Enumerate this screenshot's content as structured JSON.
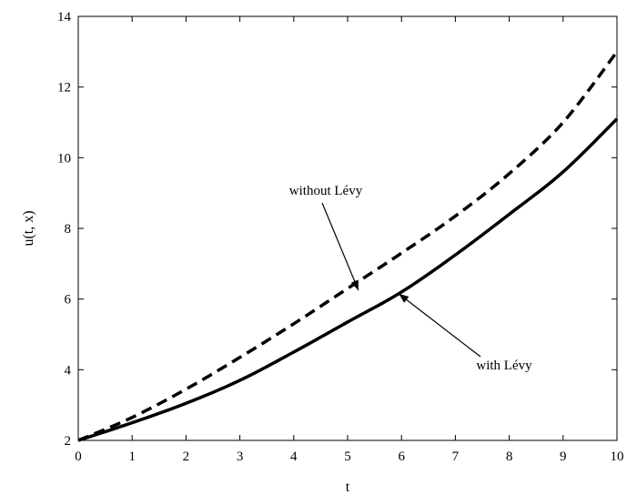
{
  "chart_data": {
    "type": "line",
    "title": "",
    "xlabel": "t",
    "ylabel": "u(t, x)",
    "xlim": [
      0,
      10
    ],
    "ylim": [
      2,
      14
    ],
    "xticks": [
      0,
      1,
      2,
      3,
      4,
      5,
      6,
      7,
      8,
      9,
      10
    ],
    "yticks": [
      2,
      4,
      6,
      8,
      10,
      12,
      14
    ],
    "grid": false,
    "legend": "none",
    "x": [
      0,
      1,
      2,
      3,
      4,
      5,
      6,
      7,
      8,
      9,
      10
    ],
    "series": [
      {
        "name": "without Lévy",
        "style": "dashed",
        "color": "#000000",
        "values": [
          2.0,
          2.65,
          3.45,
          4.35,
          5.3,
          6.3,
          7.3,
          8.35,
          9.55,
          11.0,
          13.0
        ]
      },
      {
        "name": "with Lévy",
        "style": "solid",
        "color": "#000000",
        "values": [
          2.0,
          2.5,
          3.05,
          3.7,
          4.5,
          5.35,
          6.2,
          7.25,
          8.4,
          9.6,
          11.1
        ]
      }
    ],
    "annotations": [
      {
        "text": "without Lévy",
        "series": 0,
        "point": [
          5.2,
          6.25
        ],
        "text_pos": "upper-left"
      },
      {
        "text": "with Lévy",
        "series": 1,
        "point": [
          5.95,
          6.15
        ],
        "text_pos": "lower-right"
      }
    ]
  }
}
